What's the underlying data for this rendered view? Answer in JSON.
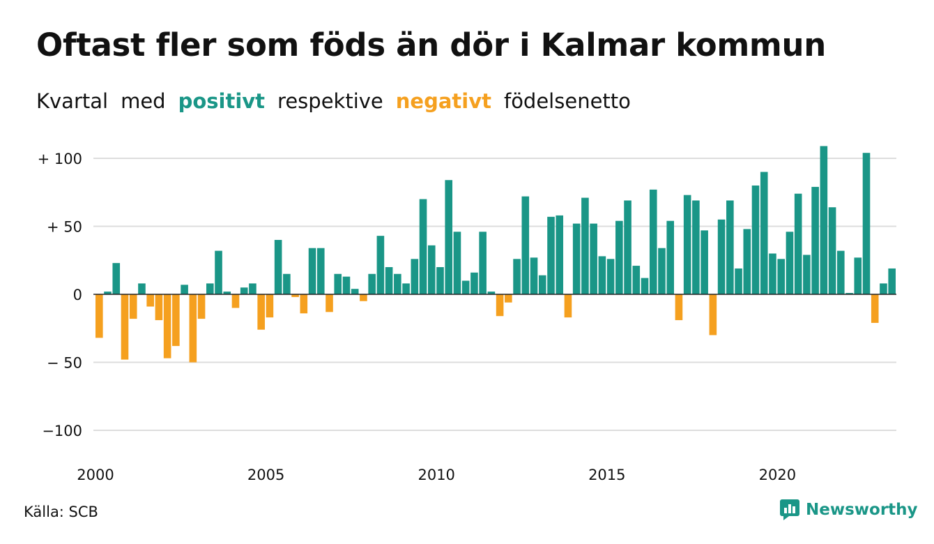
{
  "title": "Oftast fler som föds än dör i Kalmar kommun",
  "subtitle": {
    "part1": "Kvartal",
    "part2": "med",
    "positive_word": "positivt",
    "part3": "respektive",
    "negative_word": "negativt",
    "part4": "födelsenetto"
  },
  "source": "Källa: SCB",
  "brand": {
    "name": "Newsworthy",
    "logo_icon": "newsworthy-logo-icon"
  },
  "colors": {
    "positive": "#1a9687",
    "negative": "#f5a01f",
    "grid": "#dddddd",
    "axis": "#222222"
  },
  "chart_data": {
    "type": "bar",
    "title": "Oftast fler som föds än dör i Kalmar kommun",
    "xlabel": "",
    "ylabel": "",
    "x_start": "2000 Q1",
    "x_ticks": [
      "2000",
      "2005",
      "2010",
      "2015",
      "2020"
    ],
    "y_ticks": [
      100,
      50,
      0,
      -50,
      -100
    ],
    "y_tick_labels": [
      "+ 100",
      "+  50",
      "0",
      "− 50",
      "−100"
    ],
    "ylim": [
      -100,
      110
    ],
    "grid": true,
    "values": [
      -32,
      2,
      23,
      -48,
      -18,
      8,
      -9,
      -19,
      -47,
      -38,
      7,
      -50,
      -18,
      8,
      32,
      2,
      -10,
      5,
      8,
      -26,
      -17,
      40,
      15,
      -2,
      -14,
      34,
      34,
      -13,
      15,
      13,
      4,
      -5,
      15,
      43,
      20,
      15,
      8,
      26,
      70,
      36,
      20,
      84,
      46,
      10,
      16,
      46,
      2,
      -16,
      -6,
      26,
      72,
      27,
      14,
      57,
      58,
      -17,
      52,
      71,
      52,
      28,
      26,
      54,
      69,
      21,
      12,
      77,
      34,
      54,
      -19,
      73,
      69,
      47,
      -30,
      55,
      69,
      19,
      48,
      80,
      90,
      30,
      26,
      46,
      74,
      29,
      79,
      109,
      64,
      32,
      1,
      27,
      104,
      -21,
      8,
      19
    ]
  }
}
